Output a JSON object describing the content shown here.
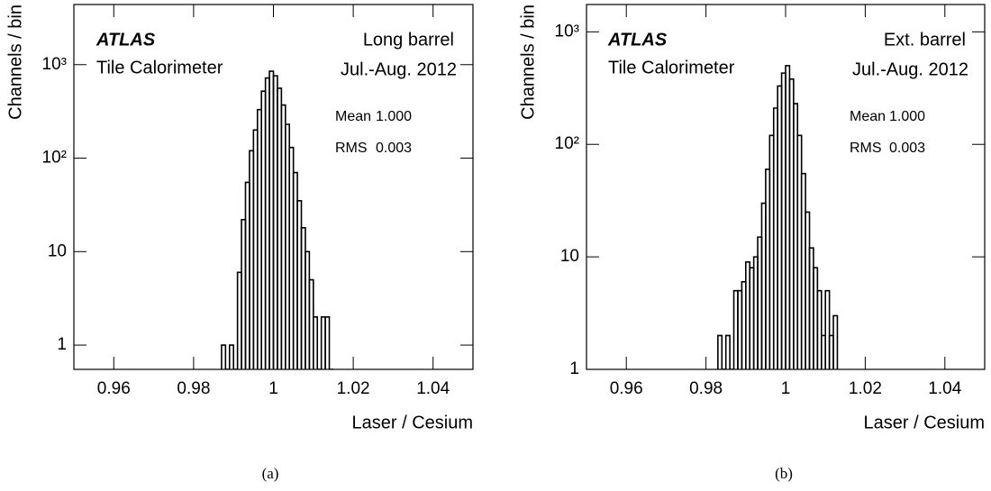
{
  "chart_data": [
    {
      "type": "histogram",
      "experiment": "ATLAS",
      "subtitle": "Tile Calorimeter",
      "region": "Long barrel",
      "period": "Jul.-Aug. 2012",
      "stats": [
        {
          "label": "Mean",
          "value": "1.000"
        },
        {
          "label": "RMS",
          "value": "0.003"
        }
      ],
      "xlabel": "Laser / Cesium",
      "ylabel": "Channels / bin",
      "caption": "(a)",
      "bins": [
        0.987,
        0.988,
        0.989,
        0.99,
        0.991,
        0.992,
        0.993,
        0.994,
        0.995,
        0.996,
        0.997,
        0.998,
        0.999,
        1.0,
        1.001,
        1.002,
        1.003,
        1.004,
        1.005,
        1.006,
        1.007,
        1.008,
        1.009,
        1.01,
        1.011,
        1.012,
        1.013,
        1.014,
        1.015
      ],
      "counts": [
        1,
        0,
        1,
        0,
        6,
        22,
        55,
        120,
        200,
        330,
        520,
        720,
        850,
        760,
        560,
        370,
        230,
        130,
        70,
        35,
        18,
        10,
        5,
        2,
        0,
        2,
        2,
        0
      ],
      "color": "#000000",
      "log_y": true,
      "xlim": [
        0.95,
        1.05
      ],
      "xticks": [
        0.96,
        0.98,
        1,
        1.02,
        1.04
      ],
      "ylim": [
        0.55,
        4400
      ],
      "yticks": [
        1,
        10,
        {
          "value": 100,
          "label": "10²"
        },
        {
          "value": 1000,
          "label": "10³"
        }
      ]
    },
    {
      "type": "histogram",
      "experiment": "ATLAS",
      "subtitle": "Tile Calorimeter",
      "region": "Ext. barrel",
      "period": "Jul.-Aug. 2012",
      "stats": [
        {
          "label": "Mean",
          "value": "1.000"
        },
        {
          "label": "RMS",
          "value": "0.003"
        }
      ],
      "xlabel": "Laser / Cesium",
      "ylabel": "Channels / bin",
      "caption": "(b)",
      "bins": [
        0.983,
        0.984,
        0.985,
        0.986,
        0.987,
        0.988,
        0.989,
        0.99,
        0.991,
        0.992,
        0.993,
        0.994,
        0.995,
        0.996,
        0.997,
        0.998,
        0.999,
        1.0,
        1.001,
        1.002,
        1.003,
        1.004,
        1.005,
        1.006,
        1.007,
        1.008,
        1.009,
        1.01,
        1.011,
        1.012,
        1.013
      ],
      "counts": [
        2,
        0,
        2,
        0,
        5,
        5,
        6,
        9,
        8,
        10,
        15,
        30,
        60,
        120,
        210,
        330,
        430,
        500,
        380,
        230,
        120,
        55,
        25,
        12,
        8,
        5,
        2,
        5,
        2,
        3
      ],
      "color": "#000000",
      "log_y": true,
      "xlim": [
        0.95,
        1.05
      ],
      "xticks": [
        0.96,
        0.98,
        1,
        1.02,
        1.04
      ],
      "ylim": [
        1,
        1750
      ],
      "yticks": [
        1,
        10,
        {
          "value": 100,
          "label": "10²"
        },
        {
          "value": 1000,
          "label": "10³"
        }
      ]
    }
  ]
}
